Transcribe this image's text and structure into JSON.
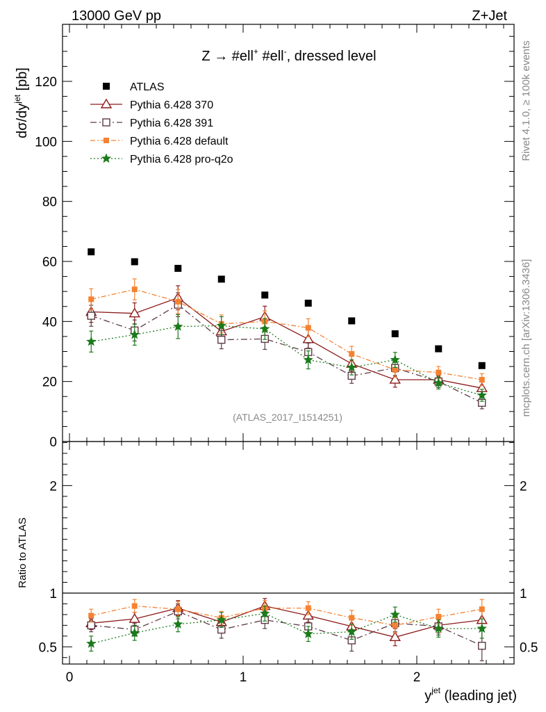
{
  "header": {
    "left": "13000 GeV pp",
    "right": "Z+Jet"
  },
  "side": {
    "rivet": "Rivet 4.1.0, ≥ 100k events",
    "mcplots": "mcplots.cern.ch [arXiv:1306.3436]"
  },
  "plot_title": {
    "main": "Z → #ell",
    "sup1": "+",
    "mid": " #ell",
    "sup2": "-",
    "end": ", dressed level"
  },
  "analysis_label": "(ATLAS_2017_I1514251)",
  "ylabel_main": {
    "base": "dσ/dy",
    "sup": "jet",
    "end": " [pb]"
  },
  "ylabel_ratio": "Ratio to ATLAS",
  "xlabel": {
    "base": "y",
    "sup": "jet",
    "end": " (leading jet)"
  },
  "colors": {
    "atlas": "#000000",
    "p370": "#8b1a1a",
    "p391": "#5c3a44",
    "pdef": "#f58231",
    "pq2o": "#1b7a1b"
  },
  "chart_data": {
    "type": "scatter",
    "x": [
      0.125,
      0.375,
      0.625,
      0.875,
      1.125,
      1.375,
      1.625,
      1.875,
      2.125,
      2.375
    ],
    "xlim": [
      -0.04,
      2.56
    ],
    "xticks": [
      0,
      1,
      2
    ],
    "xtick_labels": [
      "0",
      "1",
      "2"
    ],
    "main": {
      "ylim": [
        0,
        139
      ],
      "yticks": [
        0,
        20,
        40,
        60,
        80,
        100,
        120
      ],
      "ytick_labels": [
        "0",
        "20",
        "40",
        "60",
        "80",
        "100",
        "120"
      ],
      "series": [
        {
          "name": "ATLAS",
          "key": "atlas",
          "values": [
            63.2,
            59.9,
            57.7,
            54.1,
            48.8,
            46.1,
            40.2,
            35.9,
            30.9,
            25.3
          ],
          "errors": [
            0,
            0,
            0,
            0,
            0,
            0,
            0,
            0,
            0,
            0
          ]
        },
        {
          "name": "Pythia 6.428 370",
          "key": "p370",
          "values": [
            43.2,
            42.7,
            47.9,
            36.7,
            41.6,
            34.1,
            25.9,
            20.6,
            20.6,
            17.8
          ],
          "errors": [
            3.5,
            3.5,
            4.0,
            3.0,
            3.5,
            3.0,
            2.5,
            2.5,
            2.0,
            2.0
          ]
        },
        {
          "name": "Pythia 6.428 391",
          "key": "p391",
          "values": [
            41.9,
            37.0,
            45.6,
            33.9,
            34.2,
            29.8,
            21.9,
            24.5,
            20.0,
            12.9
          ],
          "errors": [
            3.5,
            3.5,
            4.0,
            3.0,
            3.5,
            3.0,
            2.5,
            2.5,
            2.0,
            2.0
          ]
        },
        {
          "name": "Pythia 6.428 default",
          "key": "pdef",
          "values": [
            47.4,
            50.7,
            46.6,
            39.2,
            40.0,
            37.9,
            29.2,
            23.9,
            23.0,
            20.6
          ],
          "errors": [
            3.5,
            3.5,
            4.0,
            3.0,
            3.5,
            3.0,
            2.5,
            2.5,
            2.0,
            2.0
          ]
        },
        {
          "name": "Pythia 6.428 pro-q2o",
          "key": "pq2o",
          "values": [
            33.3,
            35.6,
            38.3,
            38.6,
            37.5,
            27.2,
            24.7,
            27.2,
            19.5,
            15.4
          ],
          "errors": [
            3.5,
            3.5,
            4.0,
            3.0,
            3.5,
            3.0,
            2.5,
            2.5,
            2.0,
            2.0
          ]
        }
      ]
    },
    "ratio": {
      "ylim": [
        0.34,
        2.41
      ],
      "yticks": [
        0.5,
        1,
        2
      ],
      "ytick_labels": [
        "0.5",
        "1",
        "2"
      ],
      "series": [
        {
          "name": "Pythia 6.428 370",
          "key": "p370",
          "values": [
            0.72,
            0.76,
            0.86,
            0.73,
            0.88,
            0.79,
            0.69,
            0.59,
            0.7,
            0.75
          ],
          "errors": [
            0.06,
            0.06,
            0.07,
            0.06,
            0.07,
            0.06,
            0.07,
            0.08,
            0.07,
            0.09
          ]
        },
        {
          "name": "Pythia 6.428 391",
          "key": "p391",
          "values": [
            0.7,
            0.66,
            0.83,
            0.66,
            0.75,
            0.69,
            0.56,
            0.72,
            0.69,
            0.51
          ],
          "errors": [
            0.06,
            0.06,
            0.07,
            0.08,
            0.08,
            0.07,
            0.1,
            0.08,
            0.08,
            0.14
          ]
        },
        {
          "name": "Pythia 6.428 default",
          "key": "pdef",
          "values": [
            0.79,
            0.88,
            0.85,
            0.77,
            0.86,
            0.86,
            0.77,
            0.7,
            0.78,
            0.85
          ],
          "errors": [
            0.06,
            0.06,
            0.07,
            0.06,
            0.07,
            0.06,
            0.07,
            0.07,
            0.07,
            0.09
          ]
        },
        {
          "name": "Pythia 6.428 pro-q2o",
          "key": "pq2o",
          "values": [
            0.53,
            0.63,
            0.71,
            0.75,
            0.81,
            0.62,
            0.64,
            0.8,
            0.67,
            0.67
          ],
          "errors": [
            0.07,
            0.07,
            0.07,
            0.07,
            0.07,
            0.07,
            0.07,
            0.07,
            0.08,
            0.09
          ]
        }
      ]
    },
    "legend": {
      "position": "top-left",
      "entries": [
        {
          "label": "ATLAS",
          "key": "atlas"
        },
        {
          "label": "Pythia 6.428 370",
          "key": "p370"
        },
        {
          "label": "Pythia 6.428 391",
          "key": "p391"
        },
        {
          "label": "Pythia 6.428 default",
          "key": "pdef"
        },
        {
          "label": "Pythia 6.428 pro-q2o",
          "key": "pq2o"
        }
      ]
    }
  }
}
